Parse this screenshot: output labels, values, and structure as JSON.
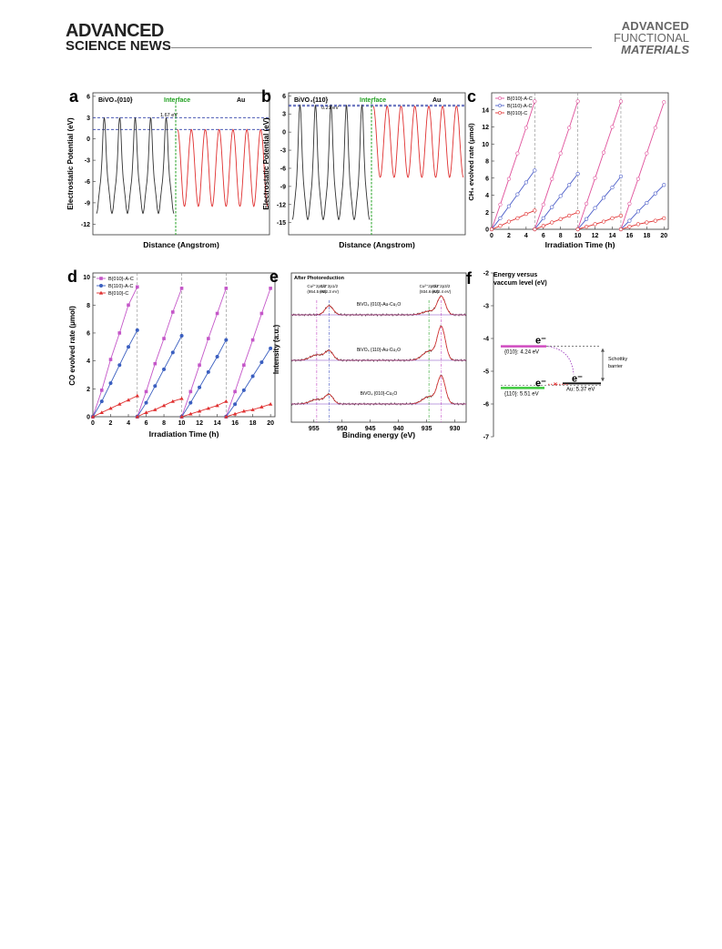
{
  "header": {
    "left_line1": "ADVANCED",
    "left_line2": "SCIENCE NEWS",
    "right_line1": "ADVANCED",
    "right_line2": "FUNCTIONAL",
    "right_line3": "MATERIALS"
  },
  "panels": {
    "a": {
      "letter": "a",
      "left_label": "BiVO₄{010}",
      "interface_label": "Interface",
      "right_label": "Au",
      "gap_label": "1.67 eV",
      "ylabel": "Electrostatic Potential (eV)",
      "xlabel": "Distance (Angstrom)",
      "yticks": [
        "6",
        "3",
        "0",
        "-3",
        "-6",
        "-9",
        "-12"
      ],
      "ylim": [
        -13.5,
        6.5
      ],
      "lines": [
        3.0,
        1.33
      ]
    },
    "b": {
      "letter": "b",
      "left_label": "BiVO₄{110}",
      "interface_label": "Interface",
      "right_label": "Au",
      "gap_label": "0.21 eV",
      "ylabel": "Electrostatic Potential (eV)",
      "xlabel": "Distance (Angstrom)",
      "yticks": [
        "6",
        "3",
        "0",
        "-3",
        "-6",
        "-9",
        "-12",
        "-15"
      ],
      "ylim": [
        -17,
        6.5
      ],
      "lines": [
        4.5,
        4.29
      ]
    }
  },
  "chart_data": [
    {
      "panel": "c",
      "type": "line",
      "xlabel": "Irradiation Time (h)",
      "ylabel": "CH₄ evolved rate (μmol)",
      "xlim": [
        0,
        20.5
      ],
      "ylim": [
        0,
        16
      ],
      "xticks": [
        "0",
        "2",
        "4",
        "6",
        "8",
        "10",
        "12",
        "14",
        "16",
        "18",
        "20"
      ],
      "yticks": [
        "0",
        "2",
        "4",
        "6",
        "8",
        "10",
        "12",
        "14"
      ],
      "dividers": [
        5,
        10,
        15
      ],
      "cycle_x": [
        0,
        1,
        2,
        3,
        4,
        5
      ],
      "series": [
        {
          "name": "B{010}-A-C",
          "color": "#e0519b",
          "marker": "square",
          "cycles": [
            [
              0,
              2.9,
              5.9,
              8.9,
              11.9,
              15.0
            ],
            [
              0,
              2.9,
              5.9,
              8.9,
              11.9,
              15.0
            ],
            [
              0,
              3.0,
              6.0,
              9.0,
              12.0,
              15.0
            ],
            [
              0,
              3.0,
              5.9,
              8.9,
              11.9,
              14.9
            ]
          ]
        },
        {
          "name": "B{110}-A-C",
          "color": "#4a5cc8",
          "marker": "circle",
          "cycles": [
            [
              0,
              1.3,
              2.7,
              4.1,
              5.5,
              6.9
            ],
            [
              0,
              1.3,
              2.6,
              3.9,
              5.2,
              6.5
            ],
            [
              0,
              1.2,
              2.5,
              3.7,
              4.9,
              6.2
            ],
            [
              0,
              1.0,
              2.1,
              3.1,
              4.2,
              5.2
            ]
          ]
        },
        {
          "name": "B{010}-C",
          "color": "#e03030",
          "marker": "triangle",
          "cycles": [
            [
              0,
              0.4,
              0.9,
              1.3,
              1.8,
              2.2
            ],
            [
              0,
              0.4,
              0.8,
              1.2,
              1.6,
              2.0
            ],
            [
              0,
              0.3,
              0.6,
              0.9,
              1.3,
              1.6
            ],
            [
              0,
              0.3,
              0.6,
              0.8,
              1.0,
              1.3
            ]
          ]
        }
      ]
    },
    {
      "panel": "d",
      "type": "line",
      "xlabel": "Irradiation Time (h)",
      "ylabel": "CO evolved rate (μmol)",
      "xlim": [
        0,
        20.5
      ],
      "ylim": [
        0,
        10.3
      ],
      "xticks": [
        "0",
        "2",
        "4",
        "6",
        "8",
        "10",
        "12",
        "14",
        "16",
        "18",
        "20"
      ],
      "yticks": [
        "0",
        "2",
        "4",
        "6",
        "8",
        "10"
      ],
      "dividers": [
        5,
        10,
        15
      ],
      "cycle_x": [
        0,
        1,
        2,
        3,
        4,
        5
      ],
      "series": [
        {
          "name": "B{010}-A-C",
          "color": "#c456c8",
          "marker": "square",
          "cycles": [
            [
              0,
              1.9,
              4.1,
              6.0,
              8.0,
              9.3
            ],
            [
              0,
              1.8,
              3.8,
              5.6,
              7.5,
              9.2
            ],
            [
              0,
              1.8,
              3.7,
              5.6,
              7.4,
              9.2
            ],
            [
              0,
              1.8,
              3.7,
              5.5,
              7.4,
              9.2
            ]
          ]
        },
        {
          "name": "B{110}-A-C",
          "color": "#3b5fc0",
          "marker": "circle",
          "cycles": [
            [
              0,
              1.1,
              2.4,
              3.7,
              5.0,
              6.2
            ],
            [
              0,
              1.0,
              2.2,
              3.4,
              4.6,
              5.8
            ],
            [
              0,
              1.0,
              2.1,
              3.2,
              4.3,
              5.5
            ],
            [
              0,
              0.9,
              1.9,
              2.9,
              3.9,
              4.9
            ]
          ]
        },
        {
          "name": "B{010}-C",
          "color": "#e03030",
          "marker": "triangle",
          "cycles": [
            [
              0,
              0.3,
              0.6,
              0.9,
              1.2,
              1.5
            ],
            [
              0,
              0.3,
              0.5,
              0.8,
              1.1,
              1.3
            ],
            [
              0,
              0.2,
              0.4,
              0.6,
              0.8,
              1.1
            ],
            [
              0,
              0.2,
              0.4,
              0.5,
              0.7,
              0.9
            ]
          ]
        }
      ]
    },
    {
      "panel": "e",
      "type": "line",
      "title": "After Photoreduction",
      "xlabel": "Binding energy (eV)",
      "ylabel": "Intensity (a.u.)",
      "xlim": [
        959,
        928
      ],
      "xticks": [
        "955",
        "950",
        "945",
        "940",
        "935",
        "930"
      ],
      "peak_labels": [
        {
          "text": "Cu²⁺2p1/2",
          "sub": "(954.5 eV)",
          "x": 954.5
        },
        {
          "text": "Cu⁺2p1/2",
          "sub": "(952.3 eV)",
          "x": 952.3
        },
        {
          "text": "Cu²⁺2p3/2",
          "sub": "(934.6 eV)",
          "x": 934.6
        },
        {
          "text": "Cu⁺2p3/2",
          "sub": "(932.4 eV)",
          "x": 932.4
        }
      ],
      "spectra": [
        {
          "label": "BiVO₄ {010}-Au-Cu₂O"
        },
        {
          "label": "BiVO₄ {110}-Au-Cu₂O"
        },
        {
          "label": "BiVO₄ {010}-Cu₂O"
        }
      ]
    },
    {
      "panel": "f",
      "type": "diagram",
      "title_line1": "Energy versus",
      "title_line2": "vaccum level (eV)",
      "ylim": [
        -7,
        -2
      ],
      "yticks": [
        "-2",
        "-3",
        "-4",
        "-5",
        "-6",
        "-7"
      ],
      "levels": [
        {
          "name": "{010}: 4.24 eV",
          "value": -4.24,
          "color": "#d04cc0"
        },
        {
          "name": "{110}: 5.51 eV",
          "value": -5.51,
          "color": "#3cc83c"
        },
        {
          "name": "Au: 5.37 eV",
          "value": -5.37,
          "color": "#111111"
        }
      ],
      "electron": "e⁻",
      "barrier_label_line1": "Schottky",
      "barrier_label_line2": "barrier"
    }
  ]
}
